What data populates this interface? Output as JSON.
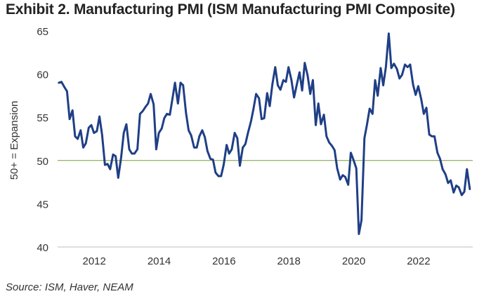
{
  "title": "Exhibit 2. Manufacturing PMI (ISM Manufacturing PMI Composite)",
  "source": "Source: ISM, Haver, NEAM",
  "chart_data": {
    "type": "line",
    "title": "Exhibit 2. Manufacturing PMI (ISM Manufacturing PMI Composite)",
    "xlabel": "",
    "ylabel": "50+ = Expansion",
    "xlim": [
      2011.0,
      2023.8
    ],
    "ylim": [
      40,
      65
    ],
    "yticks": [
      40,
      45,
      50,
      55,
      60,
      65
    ],
    "xticks": [
      2012,
      2014,
      2016,
      2018,
      2020,
      2022
    ],
    "xtick_labels": [
      "2012",
      "2014",
      "2016",
      "2018",
      "2020",
      "2022"
    ],
    "reference_line": {
      "y": 50,
      "color": "#7a9a3c"
    },
    "line_color": "#1f3f86",
    "grid": false,
    "series": [
      {
        "name": "",
        "x": [
          2011.04,
          2011.12,
          2011.21,
          2011.29,
          2011.37,
          2011.46,
          2011.54,
          2011.62,
          2011.71,
          2011.79,
          2011.87,
          2011.96,
          2012.04,
          2012.12,
          2012.21,
          2012.29,
          2012.37,
          2012.46,
          2012.54,
          2012.62,
          2012.71,
          2012.79,
          2012.87,
          2012.96,
          2013.04,
          2013.12,
          2013.21,
          2013.29,
          2013.37,
          2013.46,
          2013.54,
          2013.62,
          2013.71,
          2013.79,
          2013.87,
          2013.96,
          2014.04,
          2014.12,
          2014.21,
          2014.29,
          2014.37,
          2014.46,
          2014.54,
          2014.62,
          2014.71,
          2014.79,
          2014.87,
          2014.96,
          2015.04,
          2015.12,
          2015.21,
          2015.29,
          2015.37,
          2015.46,
          2015.54,
          2015.62,
          2015.71,
          2015.79,
          2015.87,
          2015.96,
          2016.04,
          2016.12,
          2016.21,
          2016.29,
          2016.37,
          2016.46,
          2016.54,
          2016.62,
          2016.71,
          2016.79,
          2016.87,
          2016.96,
          2017.04,
          2017.12,
          2017.21,
          2017.29,
          2017.37,
          2017.46,
          2017.54,
          2017.62,
          2017.71,
          2017.79,
          2017.87,
          2017.96,
          2018.04,
          2018.12,
          2018.21,
          2018.29,
          2018.37,
          2018.46,
          2018.54,
          2018.62,
          2018.71,
          2018.79,
          2018.87,
          2018.96,
          2019.04,
          2019.12,
          2019.21,
          2019.29,
          2019.37,
          2019.46,
          2019.54,
          2019.62,
          2019.71,
          2019.79,
          2019.87,
          2019.96,
          2020.04,
          2020.12,
          2020.21,
          2020.29,
          2020.37,
          2020.46,
          2020.54,
          2020.62,
          2020.71,
          2020.79,
          2020.87,
          2020.96,
          2021.04,
          2021.12,
          2021.21,
          2021.29,
          2021.37,
          2021.46,
          2021.54,
          2021.62,
          2021.71,
          2021.79,
          2021.87,
          2021.96,
          2022.04,
          2022.12,
          2022.21,
          2022.29,
          2022.37,
          2022.46,
          2022.54,
          2022.62,
          2022.71,
          2022.79,
          2022.87,
          2022.96,
          2023.04,
          2023.12,
          2023.21,
          2023.29,
          2023.37,
          2023.46,
          2023.54,
          2023.62,
          2023.71
        ],
        "values": [
          59.0,
          59.1,
          58.5,
          58.0,
          54.8,
          55.8,
          52.8,
          52.5,
          53.5,
          51.5,
          52.0,
          53.8,
          54.1,
          53.2,
          53.4,
          55.1,
          53.0,
          49.5,
          49.6,
          49.0,
          50.7,
          50.5,
          48.0,
          50.4,
          53.2,
          54.2,
          51.3,
          50.8,
          50.8,
          51.3,
          55.4,
          55.7,
          56.2,
          56.6,
          57.7,
          56.5,
          51.3,
          53.2,
          53.7,
          54.9,
          55.4,
          55.3,
          57.1,
          59.0,
          56.6,
          59.0,
          58.7,
          55.5,
          53.5,
          52.9,
          51.5,
          51.5,
          52.8,
          53.5,
          52.7,
          51.1,
          50.2,
          50.1,
          48.6,
          48.2,
          48.2,
          49.5,
          51.8,
          50.8,
          51.3,
          53.2,
          52.6,
          49.4,
          51.5,
          51.9,
          53.2,
          54.5,
          56.0,
          57.7,
          57.2,
          54.8,
          54.9,
          57.8,
          56.3,
          58.8,
          60.8,
          58.7,
          58.2,
          59.3,
          59.1,
          60.8,
          59.3,
          57.3,
          58.7,
          60.2,
          58.1,
          61.3,
          59.8,
          57.7,
          59.3,
          54.1,
          56.6,
          54.2,
          55.3,
          52.8,
          52.1,
          51.7,
          51.2,
          49.1,
          47.8,
          48.3,
          48.1,
          47.2,
          50.9,
          50.1,
          49.1,
          41.5,
          43.1,
          52.6,
          54.2,
          56.0,
          55.4,
          59.3,
          57.5,
          60.7,
          58.7,
          60.8,
          64.7,
          60.7,
          61.2,
          60.6,
          59.5,
          59.9,
          61.1,
          60.8,
          61.1,
          58.8,
          57.6,
          58.6,
          57.1,
          55.4,
          56.1,
          53.0,
          52.8,
          52.8,
          50.9,
          50.2,
          49.0,
          48.4,
          47.4,
          47.7,
          46.3,
          47.1,
          46.9,
          46.0,
          46.4,
          49.0,
          46.7
        ]
      }
    ]
  }
}
